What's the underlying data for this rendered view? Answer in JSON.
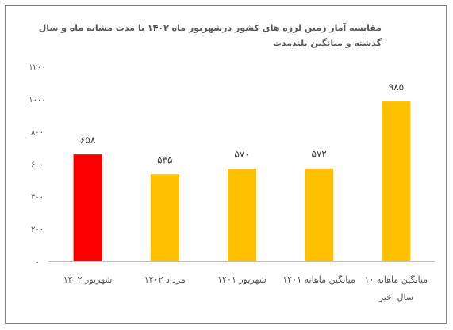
{
  "chart_data": {
    "type": "bar",
    "title": "مقایسه آمار زمین لرزه های کشور درشهریور ماه ۱۴۰۲ با مدت مشابه ماه و سال گذشته و میانگین بلندمدت",
    "categories": [
      "شهریور ۱۴۰۲",
      "مرداد ۱۴۰۲",
      "شهریور ۱۴۰۱",
      "میانگین ماهانه ۱۴۰۱",
      "میانگین ماهانه ۱۰ سال اخیر"
    ],
    "values": [
      658,
      535,
      570,
      572,
      985
    ],
    "value_labels": [
      "۶۵۸",
      "۵۳۵",
      "۵۷۰",
      "۵۷۲",
      "۹۸۵"
    ],
    "colors": [
      "#ff0000",
      "#ffc000",
      "#ffc000",
      "#ffc000",
      "#ffc000"
    ],
    "ylim": [
      0,
      1200
    ],
    "yticks": [
      0,
      200,
      400,
      600,
      800,
      1000,
      1200
    ],
    "ytick_labels": [
      "۰",
      "۲۰۰",
      "۴۰۰",
      "۶۰۰",
      "۸۰۰",
      "۱۰۰۰",
      "۱۲۰۰"
    ],
    "xlabel": "",
    "ylabel": "",
    "grid": false,
    "legend": false
  }
}
